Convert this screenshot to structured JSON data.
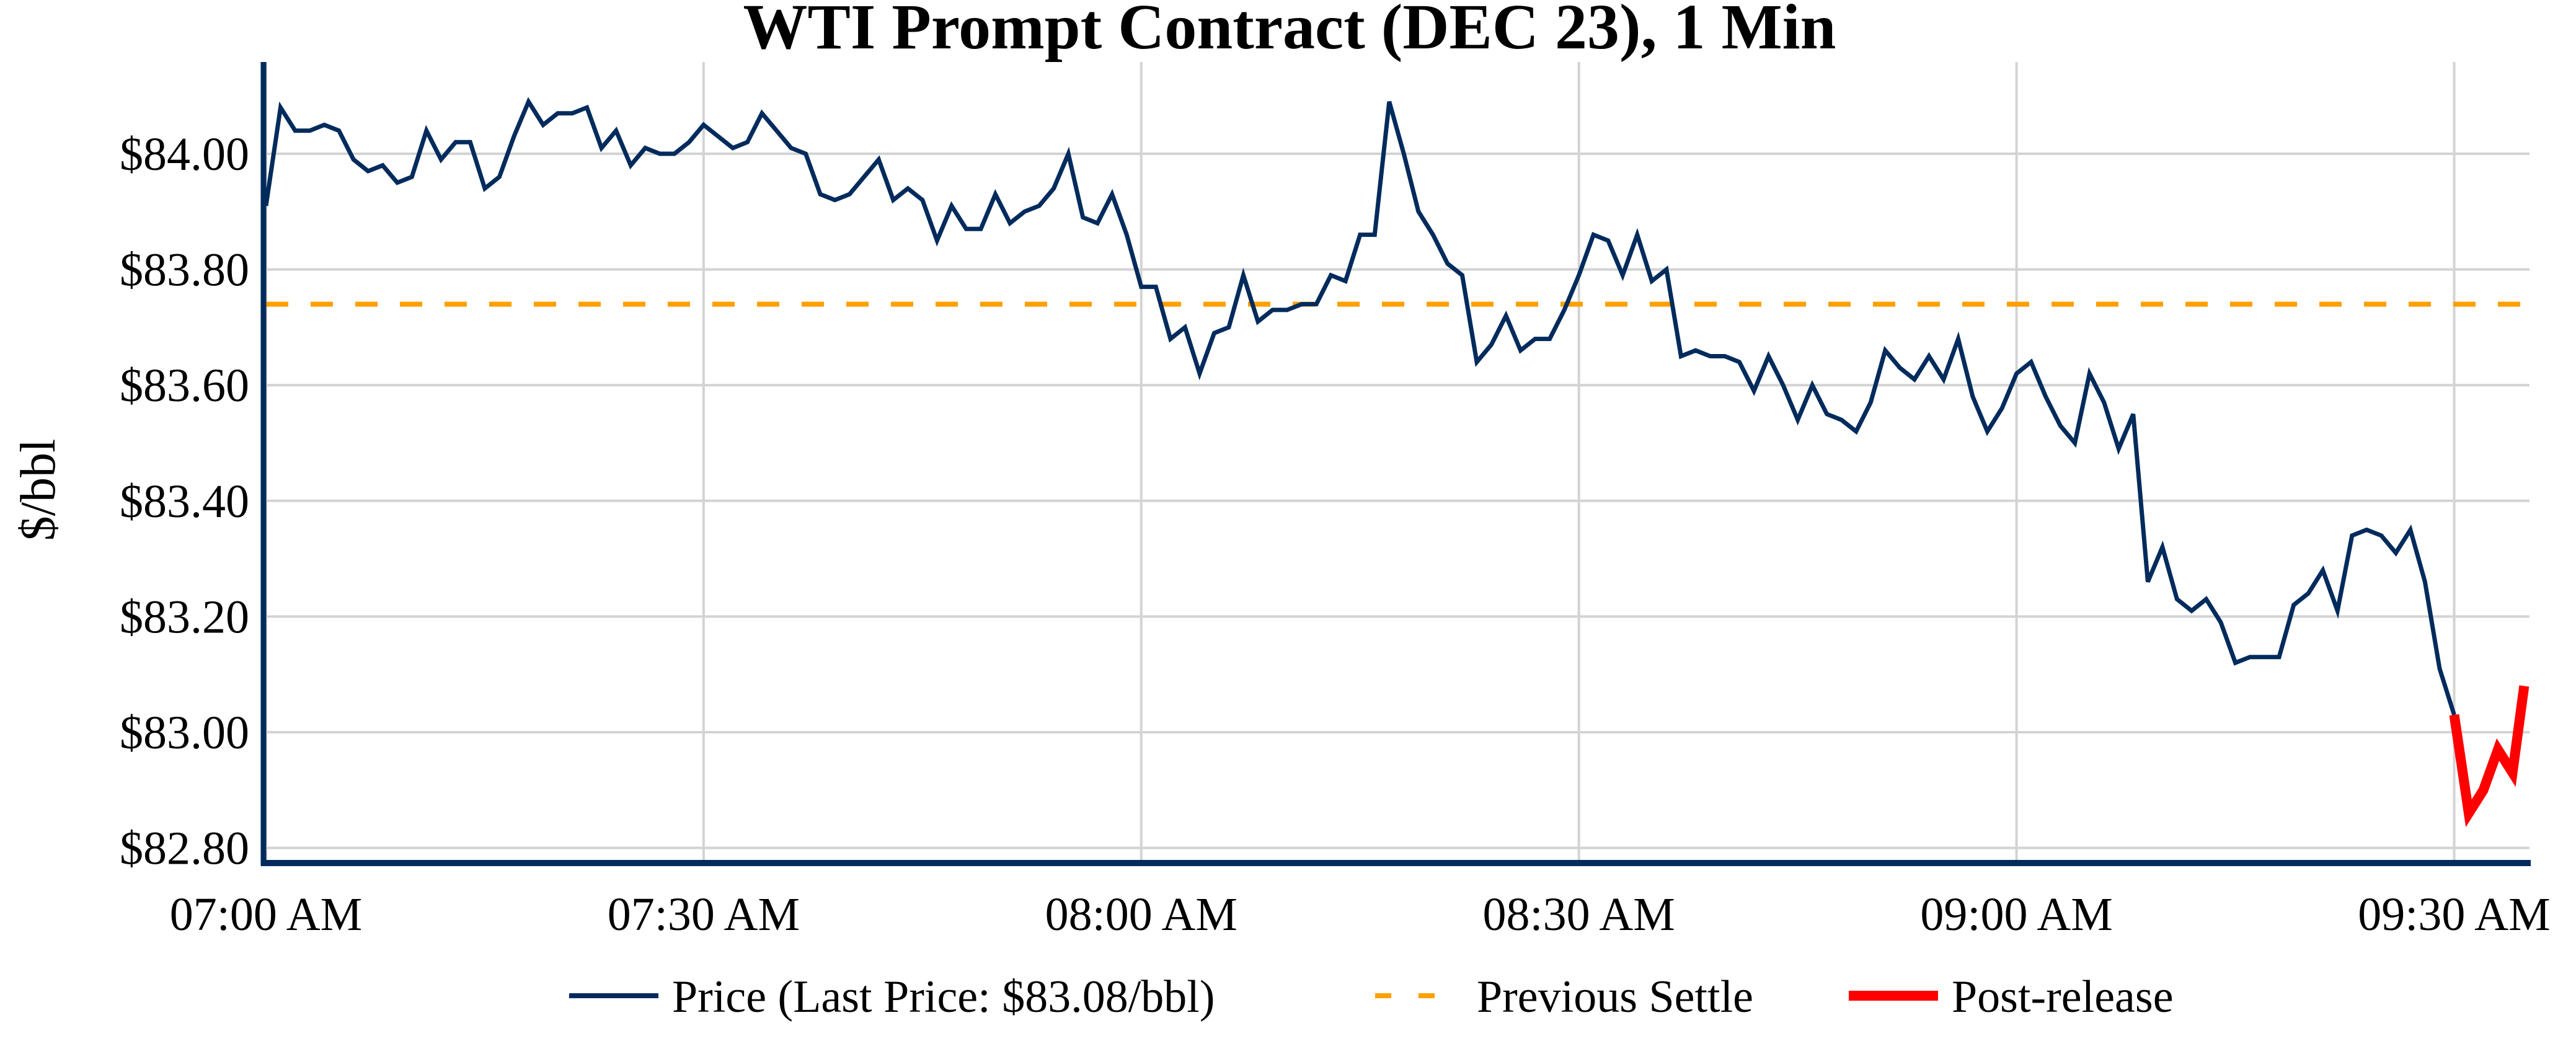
{
  "chart_data": {
    "type": "line",
    "title": "WTI Prompt Contract (DEC 23), 1 Min",
    "xlabel": "",
    "ylabel": "$/bbl",
    "x_unit": "minutes after 07:00 AM",
    "xlim_minutes": [
      0,
      33.6
    ],
    "ylim": [
      82.78,
      84.13
    ],
    "grid": true,
    "legend_position": "bottom-center",
    "x_ticks": [
      {
        "minute": 0,
        "label": "07:00 AM"
      },
      {
        "minute": 30,
        "label": "07:30 AM"
      },
      {
        "minute": 60,
        "label": "08:00 AM"
      },
      {
        "minute": 90,
        "label": "08:30 AM"
      },
      {
        "minute": 120,
        "label": "09:00 AM"
      },
      {
        "minute": 150,
        "label": "09:30 AM"
      }
    ],
    "y_ticks": [
      {
        "value": 84.0,
        "label": "$84.00"
      },
      {
        "value": 83.8,
        "label": "$83.80"
      },
      {
        "value": 83.6,
        "label": "$83.60"
      },
      {
        "value": 83.4,
        "label": "$83.40"
      },
      {
        "value": 83.2,
        "label": "$83.20"
      },
      {
        "value": 83.0,
        "label": "$83.00"
      },
      {
        "value": 82.8,
        "label": "$82.80"
      }
    ],
    "colors": {
      "price": "#002b5c",
      "settle": "#ff9f00",
      "post": "#ff0000",
      "axis": "#002b5c",
      "grid": "#d3d3d3"
    },
    "series": [
      {
        "name": "Price (Last Price: $83.08/bbl)",
        "key": "price",
        "start_minute": 0,
        "values": [
          83.91,
          84.08,
          84.04,
          84.04,
          84.05,
          84.04,
          83.99,
          83.97,
          83.98,
          83.95,
          83.96,
          84.04,
          83.99,
          84.02,
          84.02,
          83.94,
          83.96,
          84.03,
          84.09,
          84.05,
          84.07,
          84.07,
          84.08,
          84.01,
          84.04,
          83.98,
          84.01,
          84.0,
          84.0,
          84.02,
          84.05,
          84.03,
          84.01,
          84.02,
          84.07,
          84.04,
          84.01,
          84.0,
          83.93,
          83.92,
          83.93,
          83.96,
          83.99,
          83.92,
          83.94,
          83.92,
          83.85,
          83.91,
          83.87,
          83.87,
          83.93,
          83.88,
          83.9,
          83.91,
          83.94,
          84.0,
          83.89,
          83.88,
          83.93,
          83.86,
          83.77,
          83.77,
          83.68,
          83.7,
          83.62,
          83.69,
          83.7,
          83.79,
          83.71,
          83.73,
          83.73,
          83.74,
          83.74,
          83.79,
          83.78,
          83.86,
          83.86,
          84.09,
          84.0,
          83.9,
          83.86,
          83.81,
          83.79,
          83.64,
          83.67,
          83.72,
          83.66,
          83.68,
          83.68,
          83.73,
          83.79,
          83.86,
          83.85,
          83.79,
          83.86,
          83.78,
          83.8,
          83.65,
          83.66,
          83.65,
          83.65,
          83.64,
          83.59,
          83.65,
          83.6,
          83.54,
          83.6,
          83.55,
          83.54,
          83.52,
          83.57,
          83.66,
          83.63,
          83.61,
          83.65,
          83.61,
          83.68,
          83.58,
          83.52,
          83.56,
          83.62,
          83.64,
          83.58,
          83.53,
          83.5,
          83.62,
          83.57,
          83.49,
          83.55,
          83.26,
          83.32,
          83.23,
          83.21,
          83.23,
          83.19,
          83.12,
          83.13,
          83.13,
          83.13,
          83.22,
          83.24,
          83.28,
          83.21,
          83.34,
          83.35,
          83.34,
          83.31,
          83.35,
          83.26,
          83.11,
          83.03
        ]
      },
      {
        "name": "Previous Settle",
        "key": "settle",
        "constant": 83.74
      },
      {
        "name": "Post-release",
        "key": "post",
        "points": [
          {
            "minute": 150,
            "value": 83.03
          },
          {
            "minute": 151,
            "value": 82.86
          },
          {
            "minute": 152,
            "value": 82.9
          },
          {
            "minute": 153,
            "value": 82.97
          },
          {
            "minute": 154,
            "value": 82.93
          },
          {
            "minute": 154.8,
            "value": 83.08
          }
        ]
      }
    ],
    "legend": [
      {
        "label": "Price (Last Price: $83.08/bbl)",
        "style": "solid",
        "key": "price"
      },
      {
        "label": "Previous Settle",
        "style": "dashed",
        "key": "settle"
      },
      {
        "label": "Post-release",
        "style": "thick",
        "key": "post"
      }
    ]
  }
}
